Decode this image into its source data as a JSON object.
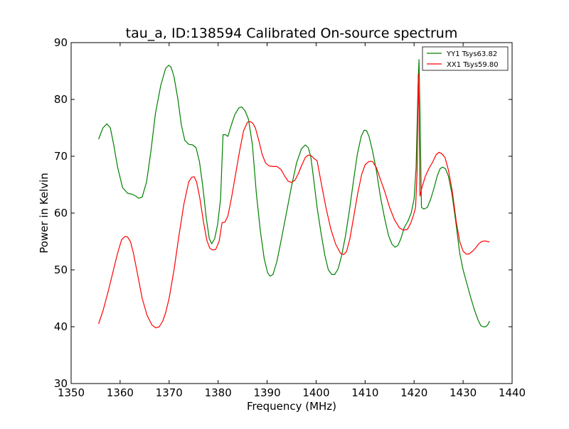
{
  "chart_data": {
    "type": "line",
    "title": "tau_a, ID:138594 Calibrated On-source spectrum",
    "xlabel": "Frequency (MHz)",
    "ylabel": "Power in Kelvin",
    "xlim": [
      1350,
      1440
    ],
    "ylim": [
      30,
      90
    ],
    "xticks": [
      1350,
      1360,
      1370,
      1380,
      1390,
      1400,
      1410,
      1420,
      1430,
      1440
    ],
    "yticks": [
      30,
      40,
      50,
      60,
      70,
      80,
      90
    ],
    "grid": false,
    "legend_position": "top-right",
    "series": [
      {
        "name": "YY1 Tsys63.82",
        "color": "#008000",
        "x": [
          1355.6,
          1356.5,
          1357.3,
          1358.0,
          1358.7,
          1359.5,
          1360.5,
          1361.5,
          1362.5,
          1363.2,
          1363.8,
          1364.5,
          1365.4,
          1366.3,
          1367.2,
          1368.3,
          1369.3,
          1369.9,
          1370.4,
          1371.0,
          1371.8,
          1372.5,
          1373.2,
          1374.0,
          1374.8,
          1375.5,
          1376.2,
          1376.9,
          1377.6,
          1378.2,
          1378.7,
          1379.3,
          1379.9,
          1380.5,
          1381.0,
          1381.5,
          1382.0,
          1382.7,
          1383.4,
          1384.2,
          1384.8,
          1385.5,
          1386.2,
          1387.0,
          1387.8,
          1388.6,
          1389.4,
          1390.1,
          1390.6,
          1391.2,
          1392.0,
          1393.0,
          1394.0,
          1395.0,
          1396.0,
          1397.0,
          1397.8,
          1398.4,
          1398.9,
          1399.5,
          1400.2,
          1401.0,
          1401.8,
          1402.5,
          1403.2,
          1403.8,
          1404.5,
          1405.2,
          1406.0,
          1406.8,
          1407.6,
          1408.4,
          1409.2,
          1409.8,
          1410.3,
          1410.8,
          1411.5,
          1412.3,
          1413.1,
          1414.0,
          1414.8,
          1415.5,
          1416.1,
          1416.7,
          1417.3,
          1418.0,
          1418.7,
          1419.4,
          1420.0,
          1420.4,
          1420.6,
          1420.8,
          1421.0,
          1421.2,
          1421.5,
          1422.0,
          1422.7,
          1423.4,
          1424.1,
          1424.7,
          1425.3,
          1425.8,
          1426.4,
          1427.0,
          1427.7,
          1428.5,
          1429.3,
          1430.0,
          1430.8,
          1431.6,
          1432.3,
          1433.0,
          1433.6,
          1434.1,
          1434.6,
          1435.0,
          1435.4
        ],
        "y": [
          73.0,
          75.0,
          75.7,
          75.0,
          72.0,
          68.0,
          64.5,
          63.5,
          63.3,
          63.0,
          62.6,
          62.8,
          65.5,
          71.0,
          77.5,
          82.5,
          85.5,
          86.0,
          85.7,
          84.0,
          80.0,
          75.5,
          72.8,
          72.1,
          72.0,
          71.5,
          69.0,
          64.5,
          59.0,
          55.5,
          54.6,
          55.5,
          58.0,
          62.5,
          73.8,
          73.8,
          73.5,
          75.5,
          77.3,
          78.5,
          78.7,
          78.0,
          76.5,
          72.0,
          63.5,
          57.0,
          52.0,
          49.5,
          48.9,
          49.2,
          51.5,
          55.8,
          60.3,
          64.8,
          68.8,
          71.3,
          72.0,
          71.5,
          70.0,
          66.0,
          61.0,
          56.5,
          52.5,
          50.0,
          49.2,
          49.2,
          50.2,
          52.5,
          56.0,
          60.5,
          65.5,
          70.3,
          73.5,
          74.6,
          74.5,
          73.5,
          71.0,
          67.5,
          63.0,
          59.0,
          56.0,
          54.5,
          54.0,
          54.3,
          55.5,
          57.5,
          58.5,
          60.0,
          62.5,
          68.0,
          75.0,
          82.0,
          87.0,
          78.0,
          61.0,
          60.7,
          61.0,
          62.5,
          64.5,
          66.5,
          67.8,
          68.1,
          67.8,
          66.5,
          63.5,
          58.5,
          53.0,
          50.0,
          47.5,
          45.0,
          43.0,
          41.3,
          40.2,
          40.0,
          40.0,
          40.3,
          41.0
        ]
      },
      {
        "name": "XX1 Tsys59.80",
        "color": "#ff0000",
        "x": [
          1355.6,
          1356.5,
          1357.5,
          1358.5,
          1359.5,
          1360.3,
          1361.0,
          1361.5,
          1362.1,
          1362.7,
          1363.5,
          1364.5,
          1365.5,
          1366.5,
          1367.3,
          1368.0,
          1368.7,
          1369.3,
          1370.0,
          1371.0,
          1372.0,
          1373.0,
          1374.0,
          1374.6,
          1375.1,
          1375.6,
          1376.3,
          1377.0,
          1377.7,
          1378.3,
          1378.9,
          1379.5,
          1380.2,
          1380.8,
          1381.4,
          1382.0,
          1382.8,
          1383.6,
          1384.4,
          1385.2,
          1386.0,
          1386.6,
          1387.1,
          1387.6,
          1388.3,
          1389.0,
          1389.7,
          1390.4,
          1391.2,
          1392.0,
          1392.8,
          1393.6,
          1394.3,
          1395.0,
          1395.7,
          1396.4,
          1397.1,
          1397.8,
          1398.4,
          1399.0,
          1399.6,
          1400.2,
          1401.0,
          1402.0,
          1403.0,
          1404.0,
          1405.0,
          1405.6,
          1406.2,
          1406.9,
          1407.7,
          1408.5,
          1409.3,
          1410.0,
          1410.8,
          1411.5,
          1412.3,
          1413.1,
          1414.0,
          1415.0,
          1416.0,
          1417.0,
          1417.8,
          1418.6,
          1419.3,
          1419.9,
          1420.3,
          1420.6,
          1420.85,
          1421.0,
          1421.2,
          1421.6,
          1422.3,
          1423.0,
          1423.8,
          1424.5,
          1425.1,
          1425.7,
          1426.3,
          1427.0,
          1427.8,
          1428.6,
          1429.3,
          1430.0,
          1430.6,
          1431.2,
          1431.8,
          1432.5,
          1433.2,
          1433.8,
          1434.4,
          1435.0,
          1435.4
        ],
        "y": [
          40.5,
          42.8,
          46.0,
          49.5,
          53.0,
          55.3,
          55.9,
          55.8,
          55.0,
          53.0,
          49.5,
          45.0,
          42.0,
          40.3,
          39.8,
          40.0,
          41.0,
          42.5,
          45.0,
          50.0,
          56.0,
          61.5,
          65.5,
          66.3,
          66.4,
          65.5,
          62.5,
          58.5,
          55.2,
          53.8,
          53.5,
          53.6,
          55.0,
          58.3,
          58.4,
          59.5,
          63.0,
          67.0,
          71.0,
          74.5,
          76.0,
          76.1,
          75.8,
          75.0,
          72.8,
          70.3,
          68.8,
          68.3,
          68.2,
          68.2,
          67.7,
          66.5,
          65.6,
          65.4,
          65.8,
          67.0,
          68.5,
          69.8,
          70.2,
          70.1,
          69.6,
          69.2,
          65.5,
          61.0,
          57.2,
          54.5,
          52.9,
          52.7,
          53.2,
          55.5,
          59.5,
          63.5,
          66.8,
          68.5,
          69.1,
          69.1,
          68.0,
          66.0,
          63.8,
          61.0,
          58.8,
          57.4,
          57.0,
          57.1,
          58.2,
          59.7,
          61.0,
          67.0,
          84.5,
          78.0,
          63.0,
          64.5,
          66.5,
          67.8,
          69.0,
          70.3,
          70.7,
          70.4,
          69.8,
          67.6,
          63.8,
          58.5,
          55.0,
          53.3,
          52.8,
          52.8,
          53.2,
          53.8,
          54.6,
          55.0,
          55.1,
          55.0,
          54.9
        ]
      }
    ]
  }
}
